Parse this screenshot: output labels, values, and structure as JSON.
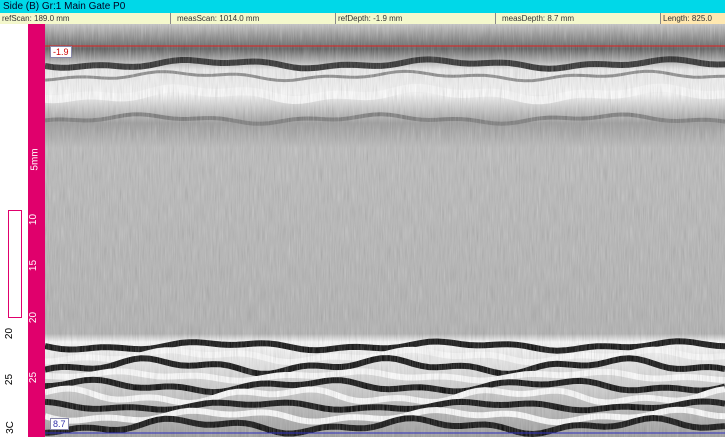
{
  "header": {
    "title": "Side (B) Gr:1 Main Gate P0"
  },
  "info_bar": [
    "refScan: 189.0 mm",
    "measScan: 1014.0 mm",
    "refDepth: -1.9 mm",
    "measDepth: 8.7 mm",
    "Length: 825.0"
  ],
  "cursors": {
    "ref": "-1.9",
    "meas": "8.7"
  },
  "depth_ruler": [
    "20",
    "25",
    "3C"
  ],
  "side_ruler": [
    "5mm",
    "10",
    "15",
    "20",
    "25"
  ]
}
